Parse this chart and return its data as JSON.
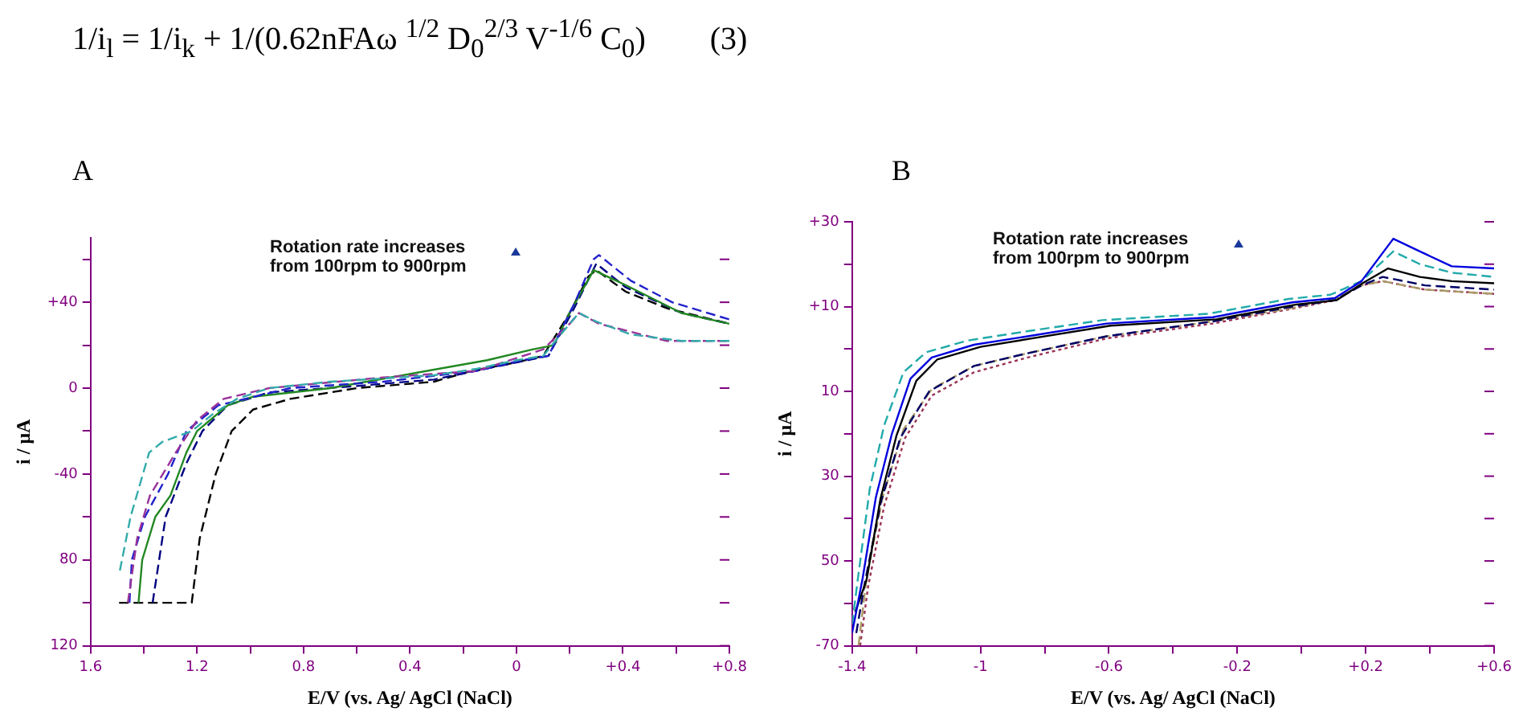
{
  "chart_data": [
    {
      "type": "other",
      "title": "1/i$_{l}$ = 1/i$_{k}$ + 1/(0.62nFAω $^{1/2}$ D$_{0}$$^{2/3}$ V$^{-1/6}$ C$_{0}$)        (3)"
    },
    {
      "type": "line",
      "title": "A",
      "xlabel": "E/V (vs. Ag/ AgCl (NaCl)",
      "ylabel": "i / μA",
      "annotations": [
        "Rotation rate increases from 100rpm to 900rpm"
      ],
      "grid": false,
      "legend": false,
      "marker": "none",
      "xlim": [
        -1.6,
        0.8
      ],
      "xticks": [
        {
          "value": -1.6,
          "label": "1.6"
        },
        {
          "value": -1.4,
          "label": null
        },
        {
          "value": -1.2,
          "label": "1.2"
        },
        {
          "value": -1.0,
          "label": null
        },
        {
          "value": -0.8,
          "label": "0.8"
        },
        {
          "value": -0.6,
          "label": null
        },
        {
          "value": -0.4,
          "label": "0.4"
        },
        {
          "value": -0.2,
          "label": null
        },
        0,
        {
          "value": 0.2,
          "label": null
        },
        {
          "value": 0.4,
          "label": "+0.4"
        },
        {
          "value": 0.6,
          "label": null
        },
        {
          "value": 0.8,
          "label": "+0.8"
        }
      ],
      "ylim": [
        -120,
        70
      ],
      "yticks": [
        {
          "value": -120,
          "label": "120"
        },
        {
          "value": -100,
          "label": null
        },
        {
          "value": -80,
          "label": "80"
        },
        {
          "value": -60,
          "label": null
        },
        {
          "value": -40,
          "label": "-40"
        },
        {
          "value": -20,
          "label": null
        },
        0,
        {
          "value": 20,
          "label": null
        },
        {
          "value": 40,
          "label": "+40"
        },
        {
          "value": 60,
          "label": null
        }
      ],
      "series": [
        {
          "color": "#33aaaa",
          "line_style": "dashed",
          "x": [
            -1.49,
            -1.45,
            -1.38,
            -1.33,
            -1.22,
            -1.14,
            -1.05,
            -0.93,
            -0.7,
            -0.31,
            -0.15,
            0.0,
            0.1,
            0.2,
            0.235,
            0.3,
            0.43,
            0.62,
            0.8
          ],
          "values": [
            -85,
            -60,
            -30,
            -25,
            -20,
            -12,
            -5,
            0,
            3,
            6,
            9,
            13,
            15,
            30,
            35,
            31,
            25,
            22,
            22
          ]
        },
        {
          "color": "#993399",
          "line_style": "dashed",
          "x": [
            -1.46,
            -1.425,
            -1.377,
            -1.28,
            -1.2,
            -1.1,
            -0.93,
            -0.5,
            -0.15,
            0.0,
            0.1,
            0.2,
            0.235,
            0.31,
            0.565,
            0.8
          ],
          "values": [
            -100,
            -70,
            -50,
            -30,
            -15,
            -5,
            0,
            5,
            8,
            14,
            18,
            30,
            35,
            30,
            22,
            22
          ]
        },
        {
          "color": "#2222cc",
          "line_style": "dashed",
          "x": [
            -1.454,
            -1.445,
            -1.396,
            -1.309,
            -1.24,
            -1.12,
            -0.85,
            -0.5,
            -0.15,
            0.02,
            0.12,
            0.22,
            0.29,
            0.31,
            0.43,
            0.585,
            0.8
          ],
          "values": [
            -100,
            -80,
            -60,
            -40,
            -20,
            -8,
            0,
            3,
            8,
            13,
            15,
            40,
            60,
            62,
            50,
            40,
            32
          ]
        },
        {
          "color": "#228822",
          "line_style": "solid",
          "x": [
            -1.42,
            -1.406,
            -1.357,
            -1.3,
            -1.24,
            -1.2,
            -1.085,
            -0.99,
            -0.7,
            -0.11,
            0.06,
            0.14,
            0.2,
            0.29,
            0.41,
            0.62,
            0.8
          ],
          "values": [
            -100,
            -80,
            -60,
            -50,
            -30,
            -20,
            -8,
            -4,
            0,
            13,
            18,
            20,
            35,
            55,
            48,
            35,
            30
          ]
        },
        {
          "color": "#000080",
          "line_style": "dashed",
          "x": [
            -1.367,
            -1.318,
            -1.24,
            -1.18,
            -1.085,
            -0.93,
            -0.6,
            -0.31,
            0.0,
            0.12,
            0.22,
            0.3,
            0.41,
            0.62,
            0.8
          ],
          "values": [
            -100,
            -60,
            -35,
            -20,
            -8,
            -2,
            1,
            4,
            12,
            15,
            38,
            58,
            47,
            35,
            30
          ]
        },
        {
          "color": "#000000",
          "line_style": "dashed",
          "x": [
            -1.493,
            -1.22,
            -1.19,
            -1.13,
            -1.07,
            -0.99,
            -0.85,
            -0.6,
            -0.31,
            -0.17,
            0.0,
            0.1,
            0.2,
            0.27,
            0.3,
            0.41,
            0.57,
            0.8
          ],
          "values": [
            -100,
            -100,
            -70,
            -40,
            -20,
            -10,
            -5,
            0,
            3,
            8,
            12,
            15,
            35,
            52,
            55,
            45,
            37,
            30
          ]
        }
      ]
    },
    {
      "type": "line",
      "title": "B",
      "xlabel": "E/V (vs. Ag/ AgCl (NaCl)",
      "ylabel": "i / μA",
      "annotations": [
        "Rotation rate increases from 100rpm to 900rpm"
      ],
      "grid": false,
      "legend": false,
      "marker": "none",
      "xlim": [
        -1.4,
        0.6
      ],
      "xticks": [
        -1.4,
        {
          "value": -1.2,
          "label": null
        },
        -1.0,
        {
          "value": -0.8,
          "label": null
        },
        -0.6,
        {
          "value": -0.4,
          "label": null
        },
        -0.2,
        {
          "value": 0,
          "label": null
        },
        {
          "value": 0.2,
          "label": "+0.2"
        },
        {
          "value": 0.4,
          "label": null
        },
        {
          "value": 0.6,
          "label": "+0.6"
        }
      ],
      "ylim": [
        -70,
        30
      ],
      "yticks": [
        -70,
        {
          "value": -60,
          "label": null
        },
        {
          "value": -50,
          "label": "50"
        },
        {
          "value": -40,
          "label": null
        },
        {
          "value": -30,
          "label": "30"
        },
        {
          "value": -20,
          "label": null
        },
        {
          "value": -10,
          "label": "10"
        },
        {
          "value": 0,
          "label": null
        },
        {
          "value": 10,
          "label": "+10"
        },
        {
          "value": 20,
          "label": null
        },
        {
          "value": 30,
          "label": "+30"
        }
      ],
      "series": [
        {
          "color": "#0000dd",
          "line_style": "solid",
          "x": [
            -1.4,
            -1.367,
            -1.326,
            -1.276,
            -1.218,
            -1.152,
            -1.02,
            -0.853,
            -0.607,
            -0.276,
            -0.028,
            0.104,
            0.187,
            0.286,
            0.369,
            0.468,
            0.6
          ],
          "values": [
            -67,
            -54,
            -35,
            -20,
            -7,
            -2,
            1,
            3,
            6,
            7.5,
            11,
            12,
            16,
            26,
            23,
            19.5,
            19
          ]
        },
        {
          "color": "#22aaaa",
          "line_style": "dashed",
          "x": [
            -1.4,
            -1.38,
            -1.345,
            -1.3,
            -1.24,
            -1.17,
            -1.04,
            -0.87,
            -0.62,
            -0.29,
            -0.04,
            0.09,
            0.187,
            0.286,
            0.369,
            0.468,
            0.6
          ],
          "values": [
            -65,
            -53,
            -33,
            -18,
            -5.5,
            -0.8,
            2,
            4,
            6.8,
            8.3,
            11.8,
            12.8,
            16,
            23,
            20,
            18,
            17
          ]
        },
        {
          "color": "#000000",
          "line_style": "solid",
          "x": [
            -1.39,
            -1.355,
            -1.312,
            -1.262,
            -1.2,
            -1.135,
            -1.0,
            -0.84,
            -0.595,
            -0.265,
            -0.015,
            0.11,
            0.19,
            0.27,
            0.369,
            0.468,
            0.6
          ],
          "values": [
            -62,
            -54.5,
            -35.5,
            -20.5,
            -7.5,
            -2.5,
            0.5,
            2.5,
            5.5,
            7,
            10.5,
            11.5,
            15.5,
            19,
            17,
            16,
            15.5
          ]
        },
        {
          "color": "#000066",
          "line_style": "dashed",
          "x": [
            -1.387,
            -1.36,
            -1.31,
            -1.25,
            -1.16,
            -1.02,
            -0.853,
            -0.607,
            -0.276,
            -0.028,
            0.104,
            0.187,
            0.253,
            0.385,
            0.6
          ],
          "values": [
            -67,
            -55,
            -36,
            -21,
            -10,
            -4,
            -1,
            3,
            6.5,
            10,
            11.5,
            15,
            17,
            15,
            14
          ]
        },
        {
          "color": "#aa9966",
          "line_style": "dashed",
          "x": [
            -1.38,
            -1.355,
            -1.305,
            -1.24,
            -1.152,
            -1.02,
            -0.853,
            -0.607,
            -0.276,
            -0.028,
            0.104,
            0.187,
            0.253,
            0.385,
            0.6
          ],
          "values": [
            -70,
            -54,
            -35,
            -19,
            -9.5,
            -4,
            -1,
            3,
            6.5,
            9.7,
            11.7,
            15,
            16,
            14,
            13
          ]
        },
        {
          "color": "#993355",
          "line_style": "dotted",
          "x": [
            -1.375,
            -1.35,
            -1.3,
            -1.235,
            -1.152,
            -1.02,
            -0.853,
            -0.607,
            -0.276,
            -0.028,
            0.104,
            0.187,
            0.253,
            0.385,
            0.6
          ],
          "values": [
            -70,
            -56,
            -37,
            -21,
            -11,
            -5.5,
            -2,
            2.5,
            6,
            9.5,
            11.5,
            15,
            16,
            14,
            13
          ]
        }
      ]
    }
  ]
}
